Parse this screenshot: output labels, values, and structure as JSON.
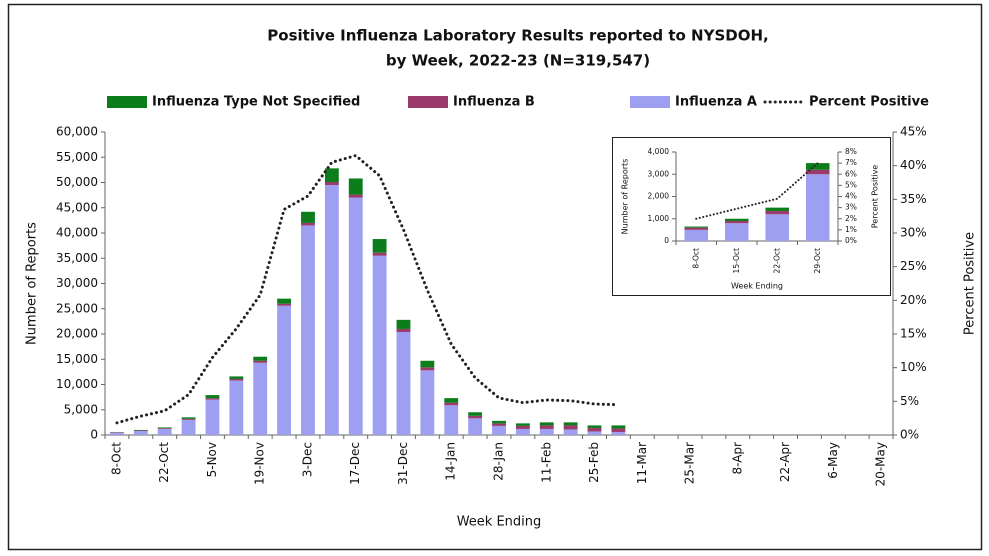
{
  "chart_data": [
    {
      "type": "bar",
      "stacked": true,
      "title": [
        "Positive Influenza Laboratory Results reported to NYSDOH,",
        "by Week, 2022-23 (N=319,547)"
      ],
      "x_label": "Week Ending",
      "y_label": "Number of Reports",
      "y2_label": "Percent Positive",
      "legend": "top",
      "grid": false,
      "categories": [
        "8-Oct",
        null,
        "22-Oct",
        null,
        "5-Nov",
        null,
        "19-Nov",
        null,
        "3-Dec",
        null,
        "17-Dec",
        null,
        "31-Dec",
        null,
        "14-Jan",
        null,
        "28-Jan",
        null,
        "11-Feb",
        null,
        "25-Feb",
        null,
        "11-Mar",
        null,
        "25-Mar",
        null,
        "8-Apr",
        null,
        "22-Apr",
        null,
        "6-May",
        null,
        "20-May"
      ],
      "series": [
        {
          "name": "Influenza Type Not Specified",
          "type": "bar",
          "color": "#0b7d1a",
          "values": [
            50,
            100,
            150,
            300,
            600,
            500,
            800,
            1000,
            2200,
            2700,
            3200,
            2700,
            1800,
            1300,
            900,
            700,
            500,
            500,
            600,
            600,
            500,
            600,
            null,
            null,
            null,
            null,
            null,
            null,
            null,
            null,
            null,
            null,
            null
          ]
        },
        {
          "name": "Influenza B",
          "type": "bar",
          "color": "#9b3b6b",
          "values": [
            100,
            100,
            150,
            200,
            300,
            300,
            400,
            400,
            500,
            600,
            600,
            600,
            600,
            600,
            500,
            500,
            500,
            600,
            700,
            800,
            700,
            700,
            null,
            null,
            null,
            null,
            null,
            null,
            null,
            null,
            null,
            null,
            null
          ]
        },
        {
          "name": "Influenza A",
          "type": "bar",
          "color": "#9f9ff2",
          "values": [
            450,
            800,
            1200,
            3000,
            7000,
            10800,
            14300,
            25600,
            41500,
            49500,
            47000,
            35500,
            20400,
            12800,
            5900,
            3300,
            1800,
            1200,
            1200,
            1100,
            700,
            600,
            null,
            null,
            null,
            null,
            null,
            null,
            null,
            null,
            null,
            null,
            null
          ]
        },
        {
          "name": "Percent Positive",
          "type": "line",
          "axis": "y2",
          "color": "#222222",
          "dash": "dotted",
          "values": [
            1.8,
            2.8,
            3.6,
            6.0,
            11.5,
            15.8,
            20.8,
            33.5,
            35.5,
            40.5,
            41.5,
            38.5,
            30.5,
            21.5,
            13.5,
            8.5,
            5.5,
            4.8,
            5.2,
            5.1,
            4.6,
            4.5,
            null,
            null,
            null,
            null,
            null,
            null,
            null,
            null,
            null,
            null,
            null
          ]
        }
      ],
      "ylim": [
        0,
        60000
      ],
      "yticks": [
        0,
        {
          "value": 5000,
          "label": "5,000"
        },
        {
          "value": 10000,
          "label": "10,000"
        },
        {
          "value": 15000,
          "label": "15,000"
        },
        {
          "value": 20000,
          "label": "20,000"
        },
        {
          "value": 25000,
          "label": "25,000"
        },
        {
          "value": 30000,
          "label": "30,000"
        },
        {
          "value": 35000,
          "label": "35,000"
        },
        {
          "value": 40000,
          "label": "40,000"
        },
        {
          "value": 45000,
          "label": "45,000"
        },
        {
          "value": 50000,
          "label": "50,000"
        },
        {
          "value": 55000,
          "label": "55,000"
        },
        {
          "value": 60000,
          "label": "60,000"
        }
      ],
      "y2lim": [
        0,
        45
      ],
      "y2ticks": [
        {
          "value": 0,
          "label": "0%"
        },
        {
          "value": 5,
          "label": "5%"
        },
        {
          "value": 10,
          "label": "10%"
        },
        {
          "value": 15,
          "label": "15%"
        },
        {
          "value": 20,
          "label": "20%"
        },
        {
          "value": 25,
          "label": "25%"
        },
        {
          "value": 30,
          "label": "30%"
        },
        {
          "value": 35,
          "label": "35%"
        },
        {
          "value": 40,
          "label": "40%"
        },
        {
          "value": 45,
          "label": "45%"
        }
      ]
    },
    {
      "type": "bar",
      "stacked": true,
      "x_label": "Week Ending",
      "y_label": "Number of Reports",
      "y2_label": "Percent Positive",
      "grid": false,
      "categories": [
        "8-Oct",
        "15-Oct",
        "22-Oct",
        "29-Oct"
      ],
      "series": [
        {
          "name": "Influenza Type Not Specified",
          "type": "bar",
          "color": "#0b7d1a",
          "values": [
            50,
            100,
            150,
            300
          ]
        },
        {
          "name": "Influenza B",
          "type": "bar",
          "color": "#9b3b6b",
          "values": [
            100,
            100,
            150,
            200
          ]
        },
        {
          "name": "Influenza A",
          "type": "bar",
          "color": "#9f9ff2",
          "values": [
            500,
            800,
            1200,
            3000
          ]
        },
        {
          "name": "Percent Positive",
          "type": "line",
          "axis": "y2",
          "color": "#222222",
          "dash": "dotted",
          "values": [
            2.0,
            2.9,
            3.8,
            7.0
          ]
        }
      ],
      "ylim": [
        0,
        4000
      ],
      "yticks": [
        0,
        {
          "value": 1000,
          "label": "1,000"
        },
        {
          "value": 2000,
          "label": "2,000"
        },
        {
          "value": 3000,
          "label": "3,000"
        },
        {
          "value": 4000,
          "label": "4,000"
        }
      ],
      "y2lim": [
        0,
        8
      ],
      "y2ticks": [
        {
          "value": 0,
          "label": "0%"
        },
        {
          "value": 1,
          "label": "1%"
        },
        {
          "value": 2,
          "label": "2%"
        },
        {
          "value": 3,
          "label": "3%"
        },
        {
          "value": 4,
          "label": "4%"
        },
        {
          "value": 5,
          "label": "5%"
        },
        {
          "value": 6,
          "label": "6%"
        },
        {
          "value": 7,
          "label": "7%"
        },
        {
          "value": 8,
          "label": "8%"
        }
      ]
    }
  ]
}
